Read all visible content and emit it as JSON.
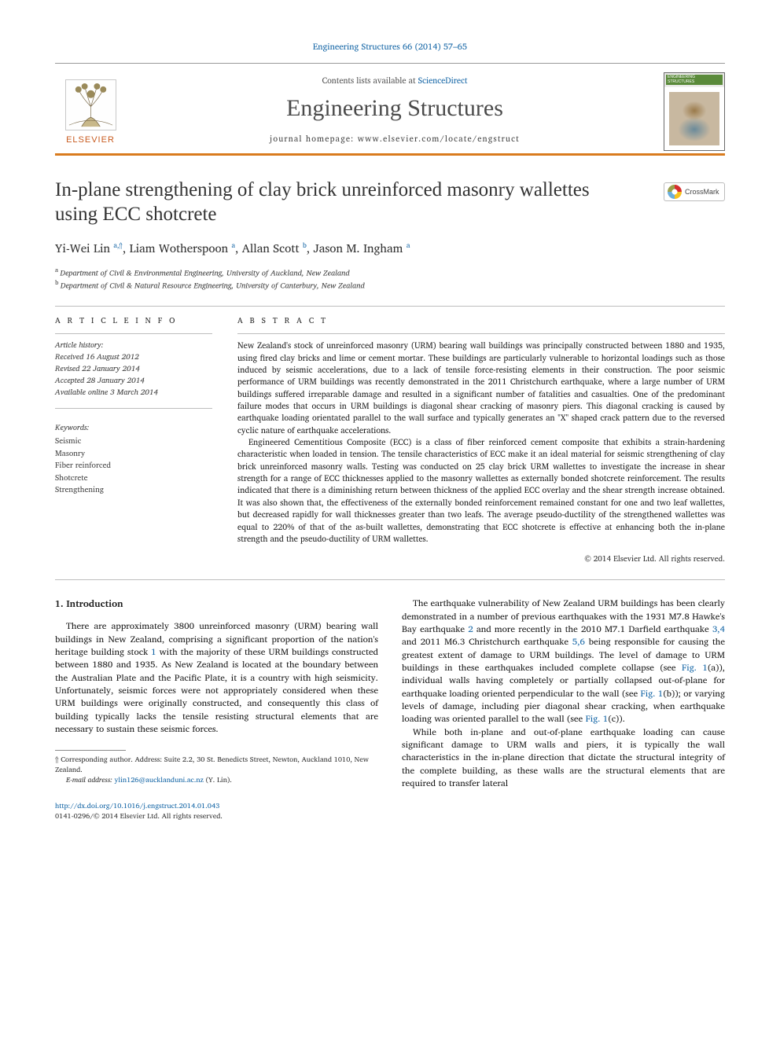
{
  "journal_ref": "Engineering Structures 66 (2014) 57–65",
  "header": {
    "contents_prefix": "Contents lists available at ",
    "contents_link": "ScienceDirect",
    "journal_name": "Engineering Structures",
    "homepage_prefix": "journal homepage: ",
    "homepage": "www.elsevier.com/locate/engstruct",
    "publisher": "ELSEVIER",
    "cover_text": "ENGINEERING STRUCTURES"
  },
  "crossmark": "CrossMark",
  "title": "In-plane strengthening of clay brick unreinforced masonry wallettes using ECC shotcrete",
  "authors_html": "Yi-Wei Lin|a,*|, Liam Wotherspoon|a|, Allan Scott|b|, Jason M. Ingham|a|",
  "authors": [
    {
      "name": "Yi-Wei Lin",
      "sup": "a,",
      "corr": "⇑"
    },
    {
      "name": "Liam Wotherspoon",
      "sup": "a"
    },
    {
      "name": "Allan Scott",
      "sup": "b"
    },
    {
      "name": "Jason M. Ingham",
      "sup": "a"
    }
  ],
  "affiliations": [
    {
      "sup": "a",
      "text": "Department of Civil & Environmental Engineering, University of Auckland, New Zealand"
    },
    {
      "sup": "b",
      "text": "Department of Civil & Natural Resource Engineering, University of Canterbury, New Zealand"
    }
  ],
  "article_info_label": "A R T I C L E   I N F O",
  "abstract_label": "A B S T R A C T",
  "history": {
    "label": "Article history:",
    "received": "Received 16 August 2012",
    "revised": "Revised 22 January 2014",
    "accepted": "Accepted 28 January 2014",
    "online": "Available online 3 March 2014"
  },
  "keywords_label": "Keywords:",
  "keywords": [
    "Seismic",
    "Masonry",
    "Fiber reinforced",
    "Shotcrete",
    "Strengthening"
  ],
  "abstract": [
    "New Zealand's stock of unreinforced masonry (URM) bearing wall buildings was principally constructed between 1880 and 1935, using fired clay bricks and lime or cement mortar. These buildings are particularly vulnerable to horizontal loadings such as those induced by seismic accelerations, due to a lack of tensile force-resisting elements in their construction. The poor seismic performance of URM buildings was recently demonstrated in the 2011 Christchurch earthquake, where a large number of URM buildings suffered irreparable damage and resulted in a significant number of fatalities and casualties. One of the predominant failure modes that occurs in URM buildings is diagonal shear cracking of masonry piers. This diagonal cracking is caused by earthquake loading orientated parallel to the wall surface and typically generates an \"X\" shaped crack pattern due to the reversed cyclic nature of earthquake accelerations.",
    "Engineered Cementitious Composite (ECC) is a class of fiber reinforced cement composite that exhibits a strain-hardening characteristic when loaded in tension. The tensile characteristics of ECC make it an ideal material for seismic strengthening of clay brick unreinforced masonry walls. Testing was conducted on 25 clay brick URM wallettes to investigate the increase in shear strength for a range of ECC thicknesses applied to the masonry wallettes as externally bonded shotcrete reinforcement. The results indicated that there is a diminishing return between thickness of the applied ECC overlay and the shear strength increase obtained. It was also shown that, the effectiveness of the externally bonded reinforcement remained constant for one and two leaf wallettes, but decreased rapidly for wall thicknesses greater than two leafs. The average pseudo-ductility of the strengthened wallettes was equal to 220% of that of the as-built wallettes, demonstrating that ECC shotcrete is effective at enhancing both the in-plane strength and the pseudo-ductility of URM wallettes."
  ],
  "copyright": "© 2014 Elsevier Ltd. All rights reserved.",
  "section1_heading": "1. Introduction",
  "body_left": [
    "There are approximately 3800 unreinforced masonry (URM) bearing wall buildings in New Zealand, comprising a significant proportion of the nation's heritage building stock [[1]] with the majority of these URM buildings constructed between 1880 and 1935. As New Zealand is located at the boundary between the Australian Plate and the Pacific Plate, it is a country with high seismicity. Unfortunately, seismic forces were not appropriately considered when these URM buildings were originally constructed, and consequently this class of building typically lacks the tensile resisting structural elements that are necessary to sustain these seismic forces."
  ],
  "body_right": [
    "The earthquake vulnerability of New Zealand URM buildings has been clearly demonstrated in a number of previous earthquakes with the 1931 M7.8 Hawke's Bay earthquake [[2]] and more recently in the 2010 M7.1 Darfield earthquake [[3,4]] and 2011 M6.3 Christchurch earthquake [[5,6]] being responsible for causing the greatest extent of damage to URM buildings. The level of damage to URM buildings in these earthquakes included complete collapse (see [[Fig. 1]](a)), individual walls having completely or partially collapsed out-of-plane for earthquake loading oriented perpendicular to the wall (see [[Fig. 1]](b)); or varying levels of damage, including pier diagonal shear cracking, when earthquake loading was oriented parallel to the wall (see [[Fig. 1]](c)).",
    "While both in-plane and out-of-plane earthquake loading can cause significant damage to URM walls and piers, it is typically the wall characteristics in the in-plane direction that dictate the structural integrity of the complete building, as these walls are the structural elements that are required to transfer lateral"
  ],
  "footnote": {
    "corr_symbol": "⇑",
    "corr_text": "Corresponding author. Address: Suite 2.2, 30 St. Benedicts Street, Newton, Auckland 1010, New Zealand.",
    "email_label": "E-mail address:",
    "email": "ylin126@aucklanduni.ac.nz",
    "email_who": "(Y. Lin)."
  },
  "footer": {
    "doi": "http://dx.doi.org/10.1016/j.engstruct.2014.01.043",
    "issn_line": "0141-0296/© 2014 Elsevier Ltd. All rights reserved."
  },
  "colors": {
    "link": "#1566a6",
    "rule_orange": "#d97b1e",
    "elsevier_orange": "#c85a1e",
    "text": "#1a1a1a",
    "muted": "#444444",
    "hr": "#bdbdbd"
  }
}
